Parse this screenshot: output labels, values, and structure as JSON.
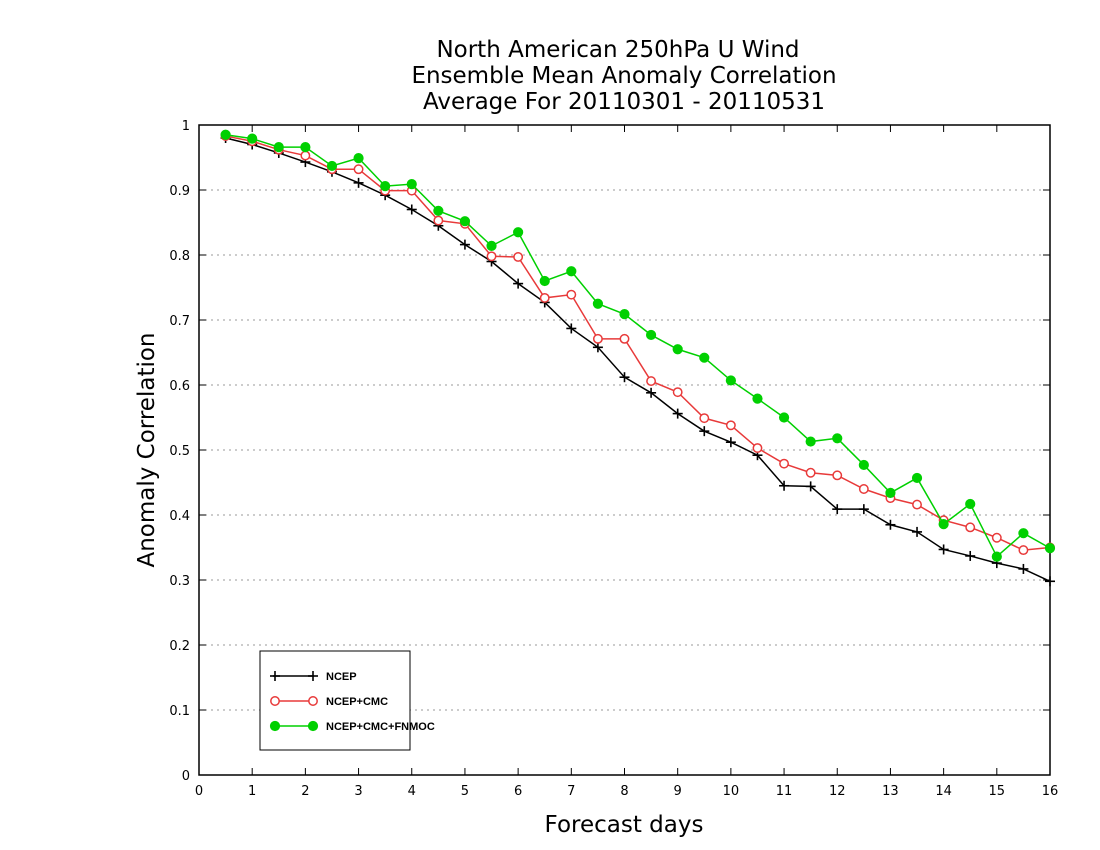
{
  "chart_data": {
    "type": "line",
    "title": [
      "North American 250hPa U Wind",
      "Ensemble Mean Anomaly Correlation",
      "Average For 20110301 - 20110531"
    ],
    "xlabel": "Forecast days",
    "ylabel": "Anomaly Correlation",
    "xlim": [
      0,
      16
    ],
    "ylim": [
      0,
      1
    ],
    "xticks": [
      "0",
      "1",
      "2",
      "3",
      "4",
      "5",
      "6",
      "7",
      "8",
      "9",
      "10",
      "11",
      "12",
      "13",
      "14",
      "15",
      "16"
    ],
    "yticks": [
      "0",
      "0.1",
      "0.2",
      "0.3",
      "0.4",
      "0.5",
      "0.6",
      "0.7",
      "0.8",
      "0.9",
      "1"
    ],
    "grid": true,
    "legend_position": "bottom-left",
    "x": [
      0.5,
      1,
      1.5,
      2,
      2.5,
      3,
      3.5,
      4,
      4.5,
      5,
      5.5,
      6,
      6.5,
      7,
      7.5,
      8,
      8.5,
      9,
      9.5,
      10,
      10.5,
      11,
      11.5,
      12,
      12.5,
      13,
      13.5,
      14,
      14.5,
      15,
      15.5,
      16
    ],
    "series": [
      {
        "name": "NCEP",
        "color": "#000000",
        "marker": "plus",
        "values": [
          0.98,
          0.97,
          0.957,
          0.943,
          0.928,
          0.911,
          0.892,
          0.87,
          0.845,
          0.816,
          0.79,
          0.756,
          0.727,
          0.687,
          0.658,
          0.612,
          0.588,
          0.556,
          0.529,
          0.512,
          0.492,
          0.445,
          0.444,
          0.409,
          0.409,
          0.385,
          0.374,
          0.347,
          0.337,
          0.326,
          0.317,
          0.298
        ]
      },
      {
        "name": "NCEP+CMC",
        "color": "#e83a3a",
        "marker": "open-circle",
        "values": [
          0.983,
          0.975,
          0.962,
          0.953,
          0.932,
          0.932,
          0.899,
          0.899,
          0.853,
          0.848,
          0.798,
          0.797,
          0.734,
          0.739,
          0.671,
          0.671,
          0.606,
          0.589,
          0.549,
          0.538,
          0.503,
          0.479,
          0.465,
          0.461,
          0.44,
          0.426,
          0.416,
          0.392,
          0.381,
          0.365,
          0.346,
          0.35
        ]
      },
      {
        "name": "NCEP+CMC+FNMOC",
        "color": "#00d000",
        "marker": "filled-circle",
        "values": [
          0.985,
          0.979,
          0.966,
          0.966,
          0.937,
          0.949,
          0.906,
          0.909,
          0.868,
          0.852,
          0.814,
          0.835,
          0.76,
          0.775,
          0.725,
          0.709,
          0.677,
          0.655,
          0.642,
          0.607,
          0.579,
          0.55,
          0.513,
          0.518,
          0.477,
          0.434,
          0.457,
          0.386,
          0.417,
          0.336,
          0.372,
          0.349
        ]
      }
    ]
  }
}
